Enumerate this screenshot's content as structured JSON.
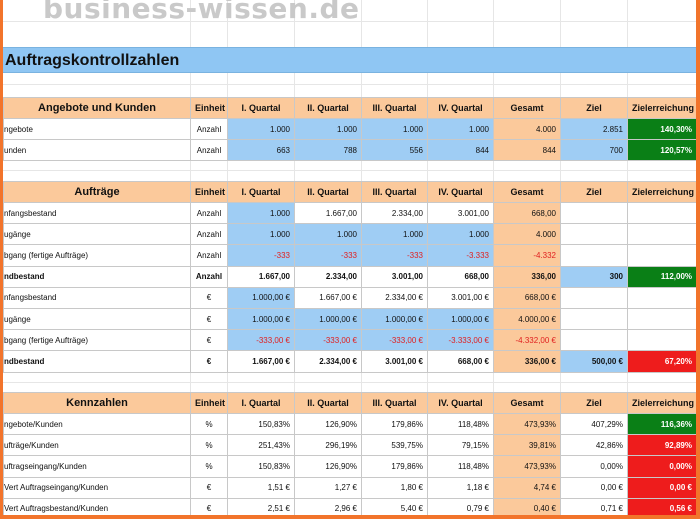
{
  "watermark": "business-wissen.de",
  "title": "Auftragskontrollzahlen",
  "headers": {
    "unit": "Einheit",
    "quarters": [
      "I. Quartal",
      "II. Quartal",
      "III. Quartal",
      "IV. Quartal"
    ],
    "total": "Gesamt",
    "goal": "Ziel",
    "achievement": "Zielerreichung"
  },
  "colors": {
    "blue": "#9fcdf4",
    "orange": "#fbc99b",
    "green": "#0a7f16",
    "red": "#ee1c1c",
    "title": "#8fc6f3"
  },
  "sections": [
    {
      "name": "Angebote und Kunden",
      "rows": [
        {
          "label": "ngebote",
          "unit": "Anzahl",
          "q": [
            "1.000",
            "1.000",
            "1.000",
            "1.000"
          ],
          "total": "4.000",
          "goal": "2.851",
          "ach": "140,30%"
        },
        {
          "label": "unden",
          "unit": "Anzahl",
          "q": [
            "663",
            "788",
            "556",
            "844"
          ],
          "total": "844",
          "goal": "700",
          "ach": "120,57%"
        }
      ]
    },
    {
      "name": "Aufträge",
      "rows": [
        {
          "label": "nfangsbestand",
          "unit": "Anzahl",
          "q": [
            "1.000",
            "1.667,00",
            "2.334,00",
            "3.001,00"
          ],
          "total": "668,00",
          "goal": "",
          "ach": ""
        },
        {
          "label": "ugänge",
          "unit": "Anzahl",
          "q": [
            "1.000",
            "1.000",
            "1.000",
            "1.000"
          ],
          "total": "4.000",
          "goal": "",
          "ach": ""
        },
        {
          "label": "bgang (fertige Aufträge)",
          "unit": "Anzahl",
          "q": [
            "-333",
            "-333",
            "-333",
            "-3.333"
          ],
          "total": "-4.332",
          "goal": "",
          "ach": ""
        },
        {
          "label": "ndbestand",
          "unit": "Anzahl",
          "q": [
            "1.667,00",
            "2.334,00",
            "3.001,00",
            "668,00"
          ],
          "total": "336,00",
          "goal": "300",
          "ach": "112,00%"
        },
        {
          "label": "nfangsbestand",
          "unit": "€",
          "q": [
            "1.000,00 €",
            "1.667,00 €",
            "2.334,00 €",
            "3.001,00 €"
          ],
          "total": "668,00 €",
          "goal": "",
          "ach": ""
        },
        {
          "label": "ugänge",
          "unit": "€",
          "q": [
            "1.000,00 €",
            "1.000,00 €",
            "1.000,00 €",
            "1.000,00 €"
          ],
          "total": "4.000,00 €",
          "goal": "",
          "ach": ""
        },
        {
          "label": "bgang (fertige Aufträge)",
          "unit": "€",
          "q": [
            "-333,00 €",
            "-333,00 €",
            "-333,00 €",
            "-3.333,00 €"
          ],
          "total": "-4.332,00 €",
          "goal": "",
          "ach": ""
        },
        {
          "label": "ndbestand",
          "unit": "€",
          "q": [
            "1.667,00 €",
            "2.334,00 €",
            "3.001,00 €",
            "668,00 €"
          ],
          "total": "336,00 €",
          "goal": "500,00 €",
          "ach": "67,20%"
        }
      ]
    },
    {
      "name": "Kennzahlen",
      "rows": [
        {
          "label": "ngebote/Kunden",
          "unit": "%",
          "q": [
            "150,83%",
            "126,90%",
            "179,86%",
            "118,48%"
          ],
          "total": "473,93%",
          "goal": "407,29%",
          "ach": "116,36%"
        },
        {
          "label": "ufträge/Kunden",
          "unit": "%",
          "q": [
            "251,43%",
            "296,19%",
            "539,75%",
            "79,15%"
          ],
          "total": "39,81%",
          "goal": "42,86%",
          "ach": "92,89%"
        },
        {
          "label": "uftragseingang/Kunden",
          "unit": "%",
          "q": [
            "150,83%",
            "126,90%",
            "179,86%",
            "118,48%"
          ],
          "total": "473,93%",
          "goal": "0,00%",
          "ach": "0,00%"
        },
        {
          "label": "Vert Auftragseingang/Kunden",
          "unit": "€",
          "q": [
            "1,51 €",
            "1,27 €",
            "1,80 €",
            "1,18 €"
          ],
          "total": "4,74 €",
          "goal": "0,00 €",
          "ach": "0,00 €"
        },
        {
          "label": "Vert Auftragsbestand/Kunden",
          "unit": "€",
          "q": [
            "2,51 €",
            "2,96 €",
            "5,40 €",
            "0,79 €"
          ],
          "total": "0,40 €",
          "goal": "0,71 €",
          "ach": "0,56 €"
        }
      ]
    }
  ]
}
